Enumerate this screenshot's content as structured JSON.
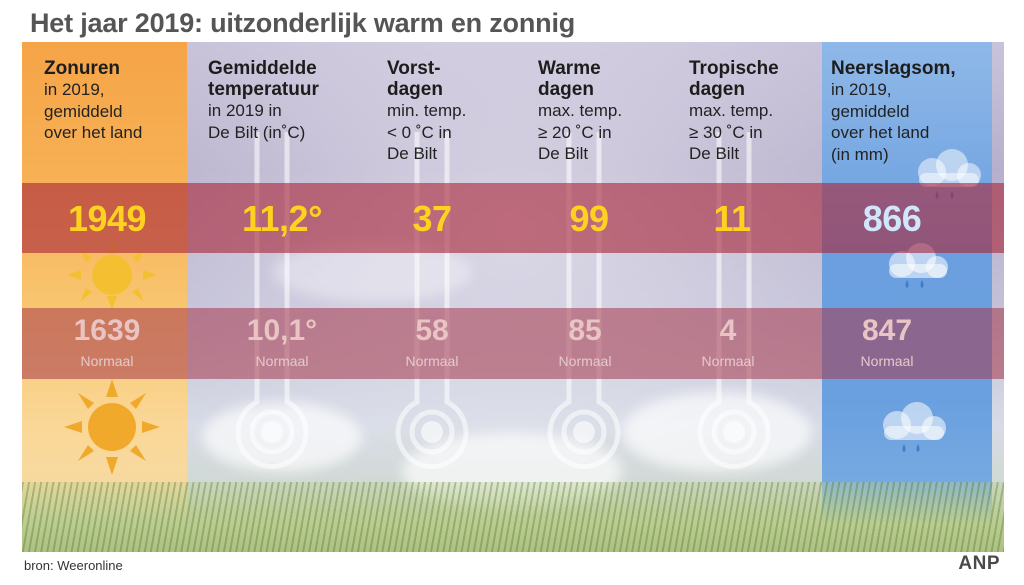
{
  "title": "Het jaar 2019: uitzonderlijk warm en zonnig",
  "columns": [
    {
      "heading": "Zonuren",
      "sub": [
        "in 2019,",
        "gemiddeld",
        "over het land"
      ],
      "value": "1949",
      "normal": "1639",
      "normal_label": "Normaal"
    },
    {
      "heading": "Gemiddelde",
      "heading2": "temperatuur",
      "sub": [
        "in 2019 in",
        "De Bilt (in˚C)"
      ],
      "value": "11,2°",
      "normal": "10,1°",
      "normal_label": "Normaal"
    },
    {
      "heading": "Vorst-",
      "heading2": "dagen",
      "sub": [
        "min. temp.",
        "< 0 ˚C in",
        "De Bilt"
      ],
      "value": "37",
      "normal": "58",
      "normal_label": "Normaal"
    },
    {
      "heading": "Warme",
      "heading2": "dagen",
      "sub": [
        "max. temp.",
        "≥ 20 ˚C in",
        "De Bilt"
      ],
      "value": "99",
      "normal": "85",
      "normal_label": "Normaal"
    },
    {
      "heading": "Tropische",
      "heading2": "dagen",
      "sub": [
        "max. temp.",
        "≥ 30 ˚C in",
        "De Bilt"
      ],
      "value": "11",
      "normal": "4",
      "normal_label": "Normaal"
    },
    {
      "heading": "Neerslagsom,",
      "sub": [
        "in 2019,",
        "gemiddeld",
        "over het land",
        "(in mm)"
      ],
      "value": "866",
      "normal": "847",
      "normal_label": "Normaal"
    }
  ],
  "source": "bron: Weeronline",
  "logo": "ANP",
  "icons": [
    "sun-icon",
    "thermometer-icon",
    "rain-cloud-icon"
  ],
  "colors": {
    "value": "#ffd21f",
    "rain_value": "#cfe6fb",
    "band": "#aa283c",
    "sun_column": "#f6a447",
    "rain_column": "#6b9fdf"
  }
}
